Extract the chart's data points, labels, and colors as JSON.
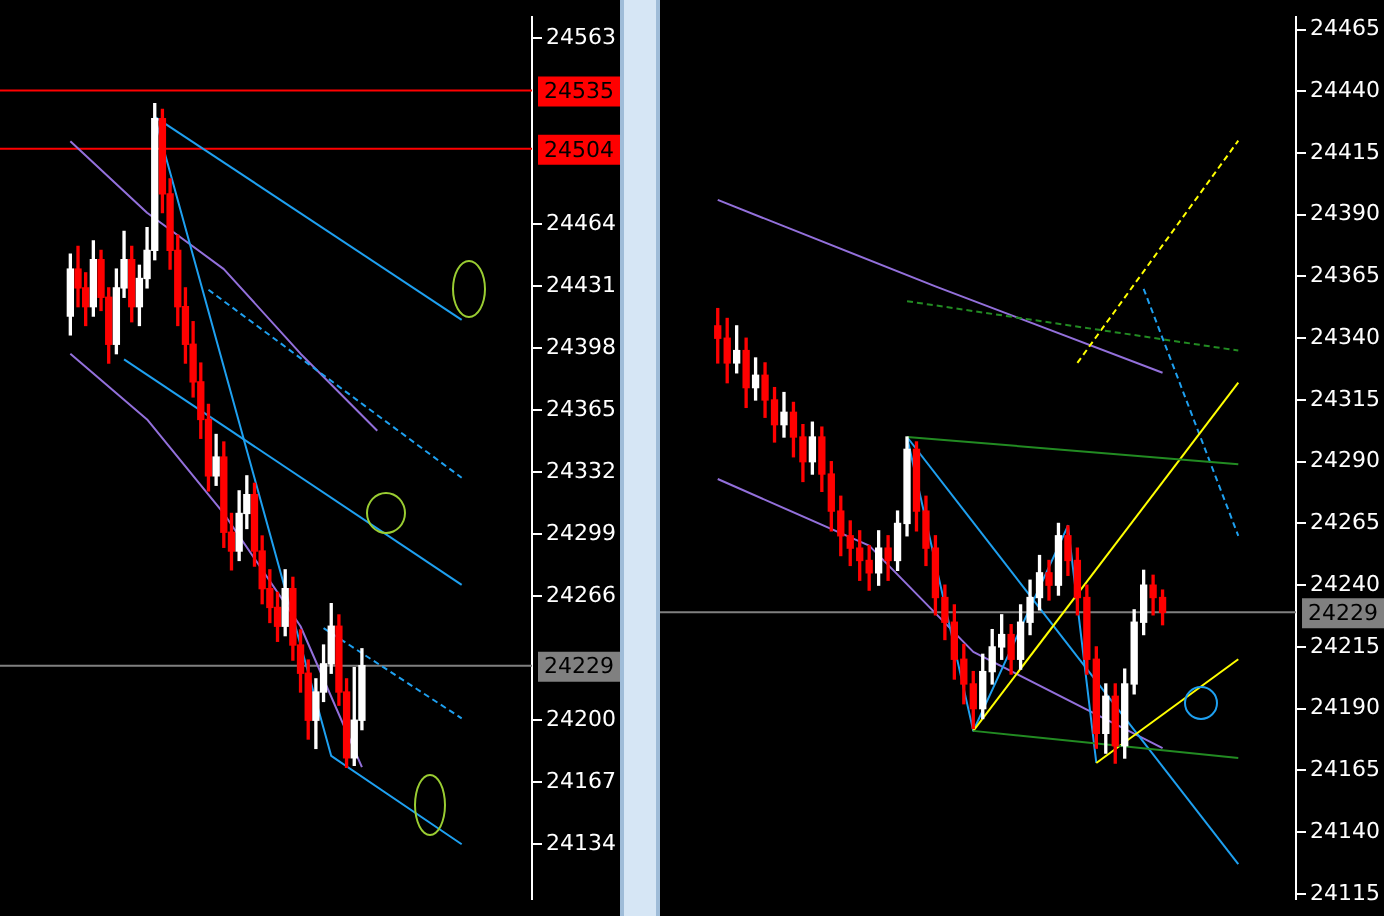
{
  "chart_data": [
    {
      "type": "candlestick",
      "tick_labels": "y",
      "grid": false,
      "legend": false,
      "ylim": [
        24105,
        24574
      ],
      "yticks": [
        24134,
        24167,
        24200,
        24266,
        24299,
        24332,
        24365,
        24398,
        24431,
        24464,
        24563
      ],
      "categories": [
        null,
        null,
        null,
        null,
        null,
        null,
        null,
        null,
        null,
        null,
        null,
        null,
        null,
        null,
        null,
        null,
        null,
        null,
        null,
        null,
        null,
        null,
        null,
        null,
        null,
        null,
        null,
        null,
        null,
        null,
        null,
        null,
        null,
        null,
        null,
        null,
        null,
        null,
        null,
        null,
        null,
        null,
        null,
        null,
        null,
        null,
        null,
        null,
        null,
        null,
        null,
        null
      ],
      "ohlc": [
        [
          24415,
          24448,
          24405,
          24440
        ],
        [
          24440,
          24452,
          24420,
          24430
        ],
        [
          24430,
          24438,
          24410,
          24420
        ],
        [
          24420,
          24455,
          24415,
          24445
        ],
        [
          24445,
          24450,
          24418,
          24425
        ],
        [
          24425,
          24430,
          24390,
          24400
        ],
        [
          24400,
          24440,
          24395,
          24430
        ],
        [
          24430,
          24460,
          24425,
          24445
        ],
        [
          24445,
          24452,
          24412,
          24420
        ],
        [
          24420,
          24442,
          24410,
          24435
        ],
        [
          24435,
          24462,
          24430,
          24450
        ],
        [
          24450,
          24528,
          24445,
          24520
        ],
        [
          24520,
          24525,
          24470,
          24480
        ],
        [
          24480,
          24488,
          24440,
          24450
        ],
        [
          24450,
          24458,
          24410,
          24420
        ],
        [
          24420,
          24430,
          24390,
          24400
        ],
        [
          24400,
          24412,
          24372,
          24380
        ],
        [
          24380,
          24390,
          24350,
          24360
        ],
        [
          24360,
          24368,
          24322,
          24330
        ],
        [
          24330,
          24352,
          24325,
          24340
        ],
        [
          24340,
          24348,
          24292,
          24300
        ],
        [
          24300,
          24310,
          24280,
          24290
        ],
        [
          24290,
          24322,
          24285,
          24310
        ],
        [
          24310,
          24330,
          24302,
          24320
        ],
        [
          24320,
          24326,
          24282,
          24290
        ],
        [
          24290,
          24298,
          24262,
          24270
        ],
        [
          24270,
          24280,
          24252,
          24260
        ],
        [
          24260,
          24268,
          24242,
          24250
        ],
        [
          24250,
          24280,
          24245,
          24270
        ],
        [
          24270,
          24276,
          24232,
          24240
        ],
        [
          24240,
          24248,
          24215,
          24225
        ],
        [
          24225,
          24232,
          24190,
          24200
        ],
        [
          24200,
          24222,
          24185,
          24215
        ],
        [
          24215,
          24240,
          24210,
          24230
        ],
        [
          24230,
          24262,
          24225,
          24250
        ],
        [
          24250,
          24256,
          24208,
          24215
        ],
        [
          24215,
          24222,
          24175,
          24180
        ],
        [
          24180,
          24228,
          24176,
          24200
        ],
        [
          24200,
          24238,
          24195,
          24229
        ],
        null,
        null,
        null,
        null,
        null,
        null,
        null,
        null,
        null,
        null,
        null,
        null,
        null
      ],
      "colors": [
        "#ffffff",
        "#ff0000",
        "#ff0000",
        "#ffffff",
        "#ff0000",
        "#ff0000",
        "#ffffff",
        "#ffffff",
        "#ff0000",
        "#ffffff",
        "#ffffff",
        "#ffffff",
        "#ff0000",
        "#ff0000",
        "#ff0000",
        "#ff0000",
        "#ff0000",
        "#ff0000",
        "#ff0000",
        "#ffffff",
        "#ff0000",
        "#ff0000",
        "#ffffff",
        "#ffffff",
        "#ff0000",
        "#ff0000",
        "#ff0000",
        "#ff0000",
        "#ffffff",
        "#ff0000",
        "#ff0000",
        "#ff0000",
        "#ffffff",
        "#ffffff",
        "#ffffff",
        "#ff0000",
        "#ff0000",
        "#ffffff",
        "#ffffff",
        null,
        null,
        null,
        null,
        null,
        null,
        null,
        null,
        null,
        null,
        null,
        null,
        null
      ],
      "series": [
        {
          "type": "line",
          "color": "#1ea0f0",
          "line_style": "solid",
          "values": [
            null,
            null,
            null,
            null,
            null,
            null,
            null,
            null,
            null,
            null,
            null,
            24521,
            null,
            null,
            null,
            null,
            null,
            null,
            null,
            null,
            null,
            null,
            null,
            null,
            null,
            null,
            null,
            null,
            null,
            null,
            null,
            null,
            null,
            null,
            null,
            null,
            null,
            null,
            null,
            null,
            null,
            null,
            null,
            null,
            null,
            null,
            null,
            null,
            null,
            null,
            null,
            24413
          ]
        },
        {
          "type": "line",
          "color": "#1ea0f0",
          "line_style": "dashed",
          "values": [
            null,
            null,
            null,
            null,
            null,
            null,
            null,
            null,
            null,
            null,
            null,
            null,
            null,
            null,
            null,
            null,
            null,
            null,
            24429,
            null,
            null,
            null,
            null,
            null,
            null,
            null,
            null,
            null,
            null,
            null,
            null,
            null,
            null,
            null,
            null,
            null,
            null,
            null,
            null,
            null,
            null,
            null,
            null,
            null,
            null,
            null,
            null,
            null,
            null,
            null,
            null,
            24329
          ]
        },
        {
          "type": "line",
          "color": "#1ea0f0",
          "line_style": "solid",
          "values": [
            null,
            null,
            null,
            null,
            null,
            null,
            null,
            24392,
            null,
            null,
            null,
            null,
            null,
            null,
            null,
            null,
            null,
            null,
            null,
            null,
            null,
            null,
            null,
            null,
            null,
            null,
            null,
            null,
            null,
            null,
            null,
            null,
            null,
            null,
            null,
            null,
            null,
            null,
            null,
            null,
            null,
            null,
            null,
            null,
            null,
            null,
            null,
            null,
            null,
            null,
            null,
            24272
          ]
        },
        {
          "type": "line",
          "color": "#1ea0f0",
          "line_style": "dashed",
          "values": [
            null,
            null,
            null,
            null,
            null,
            null,
            null,
            null,
            null,
            null,
            null,
            null,
            null,
            null,
            null,
            null,
            null,
            null,
            null,
            null,
            null,
            null,
            null,
            null,
            null,
            null,
            null,
            null,
            null,
            null,
            null,
            null,
            null,
            24249,
            null,
            null,
            null,
            null,
            null,
            null,
            null,
            null,
            null,
            null,
            null,
            null,
            null,
            null,
            null,
            null,
            null,
            24201
          ]
        },
        {
          "type": "line",
          "color": "#1ea0f0",
          "line_style": "solid",
          "values": [
            null,
            null,
            null,
            null,
            null,
            null,
            null,
            null,
            null,
            null,
            null,
            24521,
            null,
            null,
            null,
            null,
            null,
            null,
            null,
            null,
            null,
            null,
            null,
            null,
            null,
            null,
            null,
            null,
            null,
            null,
            null,
            null,
            null,
            null,
            24181,
            null,
            null,
            null,
            null,
            null,
            null,
            null,
            null,
            null,
            null,
            null,
            null,
            null,
            null,
            null,
            null,
            24134
          ]
        },
        {
          "type": "line",
          "color": "#9370db",
          "line_style": "solid",
          "values": [
            24508,
            null,
            null,
            null,
            null,
            null,
            null,
            null,
            null,
            null,
            24470,
            null,
            null,
            null,
            null,
            null,
            null,
            null,
            null,
            null,
            24440,
            null,
            null,
            null,
            null,
            null,
            null,
            null,
            null,
            null,
            24395,
            null,
            null,
            null,
            null,
            null,
            null,
            null,
            null,
            null,
            24354,
            null,
            null,
            null,
            null,
            null,
            null,
            null,
            null,
            null,
            null,
            null
          ]
        },
        {
          "type": "line",
          "color": "#9370db",
          "line_style": "solid",
          "values": [
            24395,
            null,
            null,
            null,
            null,
            null,
            null,
            null,
            null,
            null,
            24360,
            null,
            null,
            null,
            null,
            null,
            null,
            null,
            null,
            null,
            24310,
            null,
            null,
            null,
            null,
            null,
            null,
            null,
            null,
            null,
            24250,
            null,
            null,
            null,
            null,
            null,
            null,
            null,
            24175,
            null,
            null,
            null,
            null,
            null,
            null,
            null,
            null,
            null,
            null,
            null,
            null,
            null
          ]
        }
      ],
      "ref_lines": [
        {
          "axis": "y",
          "value": 24535,
          "label": "24535",
          "color": "#ff0000"
        },
        {
          "axis": "y",
          "value": 24504,
          "label": "24504",
          "color": "#ff0000"
        },
        {
          "axis": "y",
          "value": 24229,
          "label": "24229",
          "color": "#808080"
        }
      ]
    },
    {
      "type": "candlestick",
      "tick_labels": "y",
      "grid": false,
      "legend": false,
      "ylim": [
        24113,
        24470
      ],
      "yticks": [
        24115,
        24140,
        24165,
        24190,
        24215,
        24240,
        24265,
        24290,
        24315,
        24340,
        24365,
        24390,
        24415,
        24440,
        24465
      ],
      "categories": [
        null,
        null,
        null,
        null,
        null,
        null,
        null,
        null,
        null,
        null,
        null,
        null,
        null,
        null,
        null,
        null,
        null,
        null,
        null,
        null,
        null,
        null,
        null,
        null,
        null,
        null,
        null,
        null,
        null,
        null,
        null,
        null,
        null,
        null,
        null,
        null,
        null,
        null,
        null,
        null,
        null,
        null,
        null,
        null,
        null,
        null,
        null,
        null,
        null,
        null,
        null,
        null,
        null,
        null,
        null,
        null
      ],
      "ohlc": [
        [
          24345,
          24352,
          24330,
          24340
        ],
        [
          24340,
          24348,
          24322,
          24330
        ],
        [
          24330,
          24345,
          24326,
          24335
        ],
        [
          24335,
          24340,
          24312,
          24320
        ],
        [
          24320,
          24332,
          24315,
          24325
        ],
        [
          24325,
          24330,
          24308,
          24315
        ],
        [
          24315,
          24320,
          24298,
          24305
        ],
        [
          24305,
          24318,
          24300,
          24310
        ],
        [
          24310,
          24314,
          24292,
          24300
        ],
        [
          24300,
          24305,
          24282,
          24290
        ],
        [
          24290,
          24306,
          24285,
          24300
        ],
        [
          24300,
          24304,
          24278,
          24285
        ],
        [
          24285,
          24290,
          24262,
          24270
        ],
        [
          24270,
          24276,
          24252,
          24260
        ],
        [
          24260,
          24266,
          24248,
          24255
        ],
        [
          24255,
          24262,
          24242,
          24250
        ],
        [
          24250,
          24256,
          24238,
          24245
        ],
        [
          24245,
          24262,
          24240,
          24255
        ],
        [
          24255,
          24260,
          24242,
          24250
        ],
        [
          24250,
          24270,
          24246,
          24265
        ],
        [
          24265,
          24300,
          24260,
          24295
        ],
        [
          24295,
          24298,
          24262,
          24270
        ],
        [
          24270,
          24276,
          24248,
          24255
        ],
        [
          24255,
          24260,
          24228,
          24235
        ],
        [
          24235,
          24240,
          24218,
          24225
        ],
        [
          24225,
          24232,
          24202,
          24210
        ],
        [
          24210,
          24216,
          24192,
          24200
        ],
        [
          24200,
          24205,
          24182,
          24190
        ],
        [
          24190,
          24212,
          24186,
          24205
        ],
        [
          24205,
          24222,
          24200,
          24215
        ],
        [
          24215,
          24228,
          24210,
          24220
        ],
        [
          24220,
          24224,
          24204,
          24210
        ],
        [
          24210,
          24232,
          24206,
          24225
        ],
        [
          24225,
          24242,
          24220,
          24235
        ],
        [
          24235,
          24252,
          24230,
          24245
        ],
        [
          24245,
          24250,
          24234,
          24240
        ],
        [
          24240,
          24265,
          24236,
          24260
        ],
        [
          24260,
          24264,
          24244,
          24250
        ],
        [
          24250,
          24255,
          24228,
          24235
        ],
        [
          24235,
          24240,
          24204,
          24210
        ],
        [
          24210,
          24215,
          24174,
          24180
        ],
        [
          24180,
          24200,
          24172,
          24195
        ],
        [
          24195,
          24200,
          24168,
          24175
        ],
        [
          24175,
          24206,
          24170,
          24200
        ],
        [
          24200,
          24230,
          24196,
          24225
        ],
        [
          24225,
          24246,
          24220,
          24240
        ],
        [
          24240,
          24244,
          24228,
          24235
        ],
        [
          24235,
          24238,
          24224,
          24229
        ],
        null,
        null,
        null,
        null,
        null,
        null,
        null,
        null
      ],
      "colors": [
        "#ff0000",
        "#ff0000",
        "#ffffff",
        "#ff0000",
        "#ffffff",
        "#ff0000",
        "#ff0000",
        "#ffffff",
        "#ff0000",
        "#ff0000",
        "#ffffff",
        "#ff0000",
        "#ff0000",
        "#ff0000",
        "#ff0000",
        "#ff0000",
        "#ff0000",
        "#ffffff",
        "#ff0000",
        "#ffffff",
        "#ffffff",
        "#ff0000",
        "#ff0000",
        "#ff0000",
        "#ff0000",
        "#ff0000",
        "#ff0000",
        "#ff0000",
        "#ffffff",
        "#ffffff",
        "#ffffff",
        "#ff0000",
        "#ffffff",
        "#ffffff",
        "#ffffff",
        "#ff0000",
        "#ffffff",
        "#ff0000",
        "#ff0000",
        "#ff0000",
        "#ff0000",
        "#ffffff",
        "#ff0000",
        "#ffffff",
        "#ffffff",
        "#ffffff",
        "#ff0000",
        "#ff0000",
        null,
        null,
        null,
        null,
        null,
        null,
        null,
        null
      ],
      "series": [
        {
          "type": "line",
          "color": "#228b22",
          "line_style": "solid",
          "values": [
            null,
            null,
            null,
            null,
            null,
            null,
            null,
            null,
            null,
            null,
            null,
            null,
            null,
            null,
            null,
            null,
            null,
            null,
            null,
            null,
            24300,
            null,
            null,
            null,
            null,
            null,
            null,
            null,
            null,
            null,
            null,
            null,
            null,
            null,
            null,
            null,
            null,
            null,
            null,
            null,
            null,
            null,
            null,
            null,
            null,
            null,
            null,
            null,
            null,
            null,
            null,
            null,
            null,
            null,
            null,
            24289
          ]
        },
        {
          "type": "line",
          "color": "#228b22",
          "line_style": "solid",
          "values": [
            null,
            null,
            null,
            null,
            null,
            null,
            null,
            null,
            null,
            null,
            null,
            null,
            null,
            null,
            null,
            null,
            null,
            null,
            null,
            null,
            null,
            null,
            null,
            null,
            null,
            null,
            null,
            24181,
            null,
            null,
            null,
            null,
            null,
            null,
            null,
            null,
            null,
            null,
            null,
            null,
            null,
            null,
            null,
            null,
            null,
            null,
            null,
            null,
            null,
            null,
            null,
            null,
            null,
            null,
            null,
            24170
          ]
        },
        {
          "type": "line",
          "color": "#228b22",
          "line_style": "dashed",
          "values": [
            null,
            null,
            null,
            null,
            null,
            null,
            null,
            null,
            null,
            null,
            null,
            null,
            null,
            null,
            null,
            null,
            null,
            null,
            null,
            null,
            24355,
            null,
            null,
            null,
            null,
            null,
            null,
            null,
            null,
            null,
            null,
            null,
            null,
            null,
            null,
            null,
            null,
            null,
            null,
            null,
            null,
            null,
            null,
            null,
            null,
            null,
            null,
            null,
            null,
            null,
            null,
            null,
            null,
            null,
            null,
            24335
          ]
        },
        {
          "type": "line",
          "color": "#ffff00",
          "line_style": "solid",
          "values": [
            null,
            null,
            null,
            null,
            null,
            null,
            null,
            null,
            null,
            null,
            null,
            null,
            null,
            null,
            null,
            null,
            null,
            null,
            null,
            null,
            null,
            null,
            null,
            null,
            null,
            null,
            null,
            24181,
            null,
            null,
            null,
            null,
            null,
            null,
            null,
            null,
            null,
            null,
            null,
            null,
            null,
            null,
            null,
            null,
            null,
            null,
            null,
            null,
            null,
            null,
            null,
            null,
            null,
            null,
            null,
            24322
          ]
        },
        {
          "type": "line",
          "color": "#ffff00",
          "line_style": "solid",
          "values": [
            null,
            null,
            null,
            null,
            null,
            null,
            null,
            null,
            null,
            null,
            null,
            null,
            null,
            null,
            null,
            null,
            null,
            null,
            null,
            null,
            null,
            null,
            null,
            null,
            null,
            null,
            null,
            null,
            null,
            null,
            null,
            null,
            null,
            null,
            null,
            null,
            null,
            null,
            null,
            null,
            24168,
            null,
            null,
            null,
            null,
            null,
            null,
            null,
            null,
            null,
            null,
            null,
            null,
            null,
            null,
            24210
          ]
        },
        {
          "type": "line",
          "color": "#ffff00",
          "line_style": "dashed",
          "values": [
            null,
            null,
            null,
            null,
            null,
            null,
            null,
            null,
            null,
            null,
            null,
            null,
            null,
            null,
            null,
            null,
            null,
            null,
            null,
            null,
            null,
            null,
            null,
            null,
            null,
            null,
            null,
            null,
            null,
            null,
            null,
            null,
            null,
            null,
            null,
            null,
            null,
            null,
            24330,
            null,
            null,
            null,
            null,
            null,
            null,
            null,
            null,
            null,
            null,
            null,
            null,
            null,
            null,
            null,
            null,
            24420
          ]
        },
        {
          "type": "line",
          "color": "#1ea0f0",
          "line_style": "solid",
          "values": [
            null,
            null,
            null,
            null,
            null,
            null,
            null,
            null,
            null,
            null,
            null,
            null,
            null,
            null,
            null,
            null,
            null,
            null,
            null,
            null,
            24300,
            null,
            null,
            null,
            null,
            null,
            null,
            null,
            null,
            null,
            null,
            null,
            null,
            null,
            null,
            null,
            null,
            null,
            null,
            null,
            null,
            null,
            null,
            null,
            null,
            null,
            null,
            null,
            null,
            null,
            null,
            null,
            null,
            null,
            null,
            24127
          ]
        },
        {
          "type": "line",
          "color": "#1ea0f0",
          "line_style": "solid",
          "values": [
            null,
            null,
            null,
            null,
            null,
            null,
            null,
            null,
            null,
            null,
            null,
            null,
            null,
            null,
            null,
            null,
            null,
            null,
            null,
            null,
            24300,
            null,
            null,
            null,
            null,
            null,
            null,
            24181,
            null,
            null,
            null,
            null,
            null,
            null,
            null,
            null,
            null,
            24264,
            null,
            null,
            24168,
            null,
            null,
            null,
            null,
            null,
            null,
            null,
            null,
            null,
            null,
            null,
            null,
            null,
            null,
            null
          ]
        },
        {
          "type": "line",
          "color": "#1ea0f0",
          "line_style": "dashed",
          "values": [
            null,
            null,
            null,
            null,
            null,
            null,
            null,
            null,
            null,
            null,
            null,
            null,
            null,
            null,
            null,
            null,
            null,
            null,
            null,
            null,
            null,
            null,
            null,
            null,
            null,
            null,
            null,
            null,
            null,
            null,
            null,
            null,
            null,
            null,
            null,
            null,
            null,
            null,
            null,
            null,
            null,
            null,
            null,
            null,
            null,
            24360,
            null,
            null,
            null,
            null,
            null,
            null,
            null,
            null,
            null,
            24260
          ]
        },
        {
          "type": "line",
          "color": "#9370db",
          "line_style": "solid",
          "values": [
            24396,
            null,
            null,
            null,
            null,
            null,
            null,
            null,
            null,
            null,
            null,
            null,
            null,
            null,
            null,
            null,
            null,
            null,
            null,
            null,
            null,
            null,
            null,
            24361,
            null,
            null,
            null,
            null,
            null,
            null,
            null,
            null,
            null,
            null,
            null,
            null,
            null,
            null,
            null,
            null,
            null,
            null,
            null,
            null,
            null,
            null,
            null,
            24326,
            null,
            null,
            null,
            null,
            null,
            null,
            null,
            null
          ]
        },
        {
          "type": "line",
          "color": "#9370db",
          "line_style": "solid",
          "values": [
            24283,
            null,
            null,
            null,
            null,
            null,
            null,
            null,
            null,
            null,
            null,
            null,
            null,
            null,
            null,
            null,
            24256,
            null,
            null,
            null,
            null,
            null,
            null,
            null,
            null,
            null,
            null,
            24213,
            null,
            null,
            null,
            null,
            null,
            null,
            null,
            null,
            null,
            null,
            null,
            null,
            null,
            null,
            null,
            null,
            null,
            null,
            null,
            24174,
            null,
            null,
            null,
            null,
            null,
            null,
            null,
            null
          ]
        }
      ],
      "ref_lines": [
        {
          "axis": "y",
          "value": 24229,
          "label": "24229",
          "color": "#808080"
        }
      ]
    }
  ]
}
